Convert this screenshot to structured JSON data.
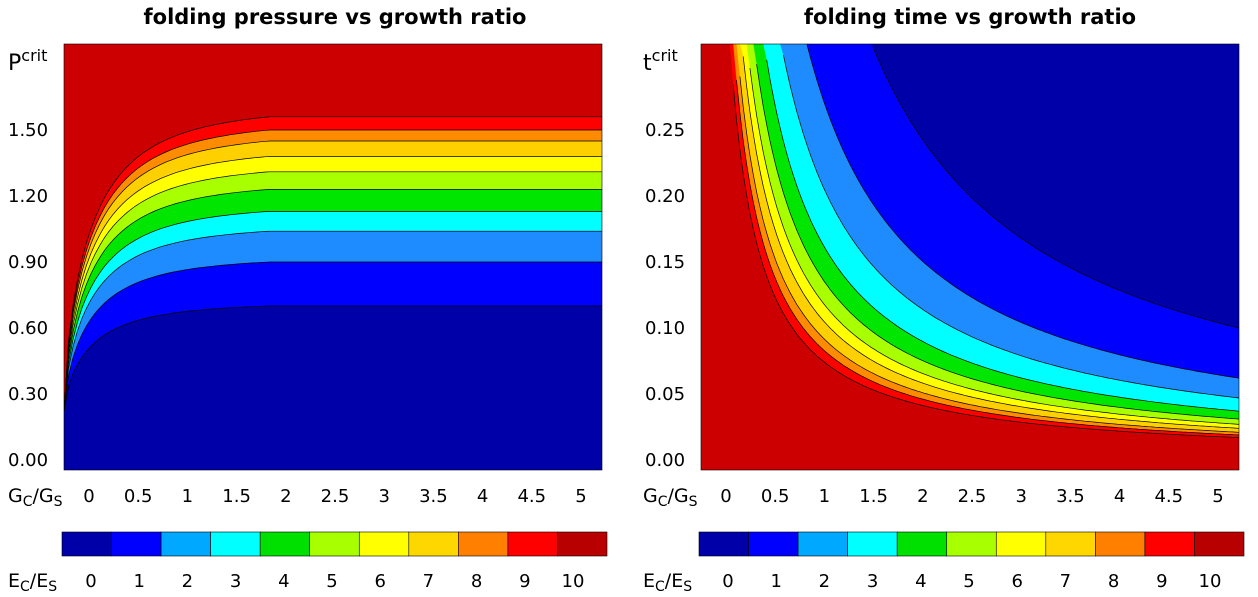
{
  "chart_data": [
    {
      "type": "heatmap",
      "title": "folding pressure vs growth ratio",
      "xlabel": "Gc/Gs",
      "ylabel": "Pcrit",
      "x_ticks": [
        "0",
        "0.5",
        "1",
        "1.5",
        "2",
        "2.5",
        "3",
        "3.5",
        "4",
        "4.5",
        "5"
      ],
      "y_ticks": [
        "0.00",
        "0.30",
        "0.60",
        "0.90",
        "1.20",
        "1.50"
      ],
      "xlim": [
        0,
        5.3
      ],
      "ylim": [
        0,
        1.92
      ],
      "contour_levels": [
        0,
        1,
        2,
        3,
        4,
        5,
        6,
        7,
        8,
        9,
        10
      ],
      "contour_boundaries": [
        {
          "level": 1,
          "p_at_x_0": 0.22,
          "p_at_x_5.3": 0.7
        },
        {
          "level": 2,
          "p_at_x_0": 0.22,
          "p_at_x_5.3": 0.9
        },
        {
          "level": 3,
          "p_at_x_0": 0.22,
          "p_at_x_5.3": 1.04
        },
        {
          "level": 4,
          "p_at_x_0": 0.22,
          "p_at_x_5.3": 1.13
        },
        {
          "level": 5,
          "p_at_x_0": 0.22,
          "p_at_x_5.3": 1.23
        },
        {
          "level": 6,
          "p_at_x_0": 0.22,
          "p_at_x_5.3": 1.31
        },
        {
          "level": 7,
          "p_at_x_0": 0.22,
          "p_at_x_5.3": 1.38
        },
        {
          "level": 8,
          "p_at_x_0": 0.22,
          "p_at_x_5.3": 1.45
        },
        {
          "level": 9,
          "p_at_x_0": 0.22,
          "p_at_x_5.3": 1.5
        },
        {
          "level": 10,
          "p_at_x_0": 0.22,
          "p_at_x_5.3": 1.56
        }
      ],
      "colorbar_label": "Ec/Es",
      "colorbar_ticks": [
        "0",
        "1",
        "2",
        "3",
        "4",
        "5",
        "6",
        "7",
        "8",
        "9",
        "10"
      ],
      "grid": false
    },
    {
      "type": "heatmap",
      "title": "folding time vs growth ratio",
      "xlabel": "Gc/Gs",
      "ylabel": "tcrit",
      "x_ticks": [
        "0",
        "0.5",
        "1",
        "1.5",
        "2",
        "2.5",
        "3",
        "3.5",
        "4",
        "4.5",
        "5"
      ],
      "y_ticks": [
        "0.00",
        "0.05",
        "0.10",
        "0.15",
        "0.20",
        "0.25"
      ],
      "xlim": [
        0,
        5.3
      ],
      "ylim": [
        0,
        0.31
      ],
      "contour_levels": [
        0,
        1,
        2,
        3,
        4,
        5,
        6,
        7,
        8,
        9,
        10
      ],
      "contour_boundaries": [
        {
          "level": 1,
          "t_at_x_5.3": 0.1
        },
        {
          "level": 2,
          "t_at_x_5.3": 0.062
        },
        {
          "level": 3,
          "t_at_x_5.3": 0.047
        },
        {
          "level": 4,
          "t_at_x_5.3": 0.037
        },
        {
          "level": 5,
          "t_at_x_5.3": 0.031
        },
        {
          "level": 6,
          "t_at_x_5.3": 0.027
        },
        {
          "level": 7,
          "t_at_x_5.3": 0.024
        },
        {
          "level": 8,
          "t_at_x_5.3": 0.021
        },
        {
          "level": 9,
          "t_at_x_5.3": 0.019
        },
        {
          "level": 10,
          "t_at_x_5.3": 0.017
        }
      ],
      "colorbar_label": "Ec/Es",
      "colorbar_ticks": [
        "0",
        "1",
        "2",
        "3",
        "4",
        "5",
        "6",
        "7",
        "8",
        "9",
        "10"
      ],
      "grid": false
    }
  ],
  "colormap": [
    "#0000a8",
    "#0000ff",
    "#00a8ff",
    "#00ffff",
    "#00e000",
    "#a8ff00",
    "#ffff00",
    "#ffd700",
    "#ff8000",
    "#ff0000",
    "#b80000"
  ],
  "background_colors": {
    "pressure_top": "#cc0000",
    "time_lower": "#cc0000"
  }
}
